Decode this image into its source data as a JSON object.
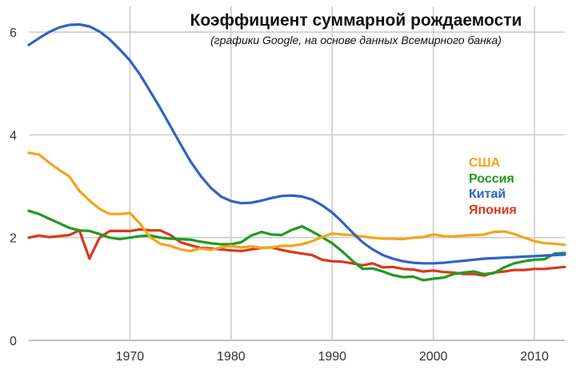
{
  "chart_data": {
    "type": "line",
    "title": "Коэффициент суммарной рождаемости",
    "subtitle": "(графики Google, на основе данных Всемирного банка)",
    "xlabel": "",
    "ylabel": "",
    "xlim": [
      1960,
      2013
    ],
    "ylim": [
      0,
      6.5
    ],
    "x_ticks": [
      1970,
      1980,
      1990,
      2000,
      2010
    ],
    "y_ticks": [
      0,
      2,
      4,
      6
    ],
    "grid": true,
    "legend_position": "right",
    "series": [
      {
        "name": "США",
        "color": "#f5a31a",
        "points": [
          [
            1960,
            3.65
          ],
          [
            1961,
            3.62
          ],
          [
            1962,
            3.46
          ],
          [
            1963,
            3.32
          ],
          [
            1964,
            3.19
          ],
          [
            1965,
            2.91
          ],
          [
            1966,
            2.72
          ],
          [
            1967,
            2.56
          ],
          [
            1968,
            2.46
          ],
          [
            1969,
            2.46
          ],
          [
            1970,
            2.48
          ],
          [
            1971,
            2.27
          ],
          [
            1972,
            2.01
          ],
          [
            1973,
            1.88
          ],
          [
            1974,
            1.84
          ],
          [
            1975,
            1.77
          ],
          [
            1976,
            1.74
          ],
          [
            1977,
            1.79
          ],
          [
            1978,
            1.76
          ],
          [
            1979,
            1.81
          ],
          [
            1980,
            1.84
          ],
          [
            1981,
            1.81
          ],
          [
            1982,
            1.83
          ],
          [
            1983,
            1.8
          ],
          [
            1984,
            1.81
          ],
          [
            1985,
            1.84
          ],
          [
            1986,
            1.84
          ],
          [
            1987,
            1.87
          ],
          [
            1988,
            1.93
          ],
          [
            1989,
            2.01
          ],
          [
            1990,
            2.08
          ],
          [
            1991,
            2.06
          ],
          [
            1992,
            2.05
          ],
          [
            1993,
            2.02
          ],
          [
            1994,
            2.0
          ],
          [
            1995,
            1.98
          ],
          [
            1996,
            1.98
          ],
          [
            1997,
            1.97
          ],
          [
            1998,
            2.0
          ],
          [
            1999,
            2.01
          ],
          [
            2000,
            2.06
          ],
          [
            2001,
            2.03
          ],
          [
            2002,
            2.02
          ],
          [
            2003,
            2.04
          ],
          [
            2004,
            2.05
          ],
          [
            2005,
            2.06
          ],
          [
            2006,
            2.11
          ],
          [
            2007,
            2.12
          ],
          [
            2008,
            2.07
          ],
          [
            2009,
            2.0
          ],
          [
            2010,
            1.93
          ],
          [
            2011,
            1.89
          ],
          [
            2012,
            1.88
          ],
          [
            2013,
            1.86
          ]
        ]
      },
      {
        "name": "Россия",
        "color": "#1f9a1f",
        "points": [
          [
            1960,
            2.52
          ],
          [
            1961,
            2.46
          ],
          [
            1962,
            2.37
          ],
          [
            1963,
            2.28
          ],
          [
            1964,
            2.19
          ],
          [
            1965,
            2.14
          ],
          [
            1966,
            2.13
          ],
          [
            1967,
            2.07
          ],
          [
            1968,
            2.0
          ],
          [
            1969,
            1.97
          ],
          [
            1970,
            2.0
          ],
          [
            1971,
            2.03
          ],
          [
            1972,
            2.04
          ],
          [
            1973,
            2.0
          ],
          [
            1974,
            1.98
          ],
          [
            1975,
            1.97
          ],
          [
            1976,
            1.96
          ],
          [
            1977,
            1.92
          ],
          [
            1978,
            1.89
          ],
          [
            1979,
            1.87
          ],
          [
            1980,
            1.87
          ],
          [
            1981,
            1.91
          ],
          [
            1982,
            2.04
          ],
          [
            1983,
            2.11
          ],
          [
            1984,
            2.06
          ],
          [
            1985,
            2.05
          ],
          [
            1986,
            2.15
          ],
          [
            1987,
            2.22
          ],
          [
            1988,
            2.12
          ],
          [
            1989,
            2.01
          ],
          [
            1990,
            1.89
          ],
          [
            1991,
            1.73
          ],
          [
            1992,
            1.55
          ],
          [
            1993,
            1.39
          ],
          [
            1994,
            1.4
          ],
          [
            1995,
            1.34
          ],
          [
            1996,
            1.27
          ],
          [
            1997,
            1.23
          ],
          [
            1998,
            1.24
          ],
          [
            1999,
            1.17
          ],
          [
            2000,
            1.2
          ],
          [
            2001,
            1.22
          ],
          [
            2002,
            1.29
          ],
          [
            2003,
            1.32
          ],
          [
            2004,
            1.34
          ],
          [
            2005,
            1.29
          ],
          [
            2006,
            1.31
          ],
          [
            2007,
            1.42
          ],
          [
            2008,
            1.5
          ],
          [
            2009,
            1.54
          ],
          [
            2010,
            1.57
          ],
          [
            2011,
            1.58
          ],
          [
            2012,
            1.69
          ],
          [
            2013,
            1.7
          ]
        ]
      },
      {
        "name": "Китай",
        "color": "#2e63c8",
        "points": [
          [
            1960,
            5.75
          ],
          [
            1961,
            5.88
          ],
          [
            1962,
            6.0
          ],
          [
            1963,
            6.09
          ],
          [
            1964,
            6.14
          ],
          [
            1965,
            6.15
          ],
          [
            1966,
            6.11
          ],
          [
            1967,
            6.01
          ],
          [
            1968,
            5.86
          ],
          [
            1969,
            5.66
          ],
          [
            1970,
            5.45
          ],
          [
            1971,
            5.17
          ],
          [
            1972,
            4.85
          ],
          [
            1973,
            4.52
          ],
          [
            1974,
            4.17
          ],
          [
            1975,
            3.82
          ],
          [
            1976,
            3.48
          ],
          [
            1977,
            3.2
          ],
          [
            1978,
            2.97
          ],
          [
            1979,
            2.8
          ],
          [
            1980,
            2.71
          ],
          [
            1981,
            2.67
          ],
          [
            1982,
            2.68
          ],
          [
            1983,
            2.72
          ],
          [
            1984,
            2.77
          ],
          [
            1985,
            2.81
          ],
          [
            1986,
            2.82
          ],
          [
            1987,
            2.8
          ],
          [
            1988,
            2.74
          ],
          [
            1989,
            2.63
          ],
          [
            1990,
            2.49
          ],
          [
            1991,
            2.3
          ],
          [
            1992,
            2.1
          ],
          [
            1993,
            1.91
          ],
          [
            1994,
            1.77
          ],
          [
            1995,
            1.66
          ],
          [
            1996,
            1.59
          ],
          [
            1997,
            1.54
          ],
          [
            1998,
            1.51
          ],
          [
            1999,
            1.5
          ],
          [
            2000,
            1.5
          ],
          [
            2001,
            1.51
          ],
          [
            2002,
            1.53
          ],
          [
            2003,
            1.55
          ],
          [
            2004,
            1.57
          ],
          [
            2005,
            1.59
          ],
          [
            2006,
            1.6
          ],
          [
            2007,
            1.61
          ],
          [
            2008,
            1.62
          ],
          [
            2009,
            1.63
          ],
          [
            2010,
            1.64
          ],
          [
            2011,
            1.65
          ],
          [
            2012,
            1.66
          ],
          [
            2013,
            1.67
          ]
        ]
      },
      {
        "name": "Япония",
        "color": "#d9381e",
        "points": [
          [
            1960,
            2.0
          ],
          [
            1961,
            2.04
          ],
          [
            1962,
            2.01
          ],
          [
            1963,
            2.03
          ],
          [
            1964,
            2.05
          ],
          [
            1965,
            2.14
          ],
          [
            1966,
            1.59
          ],
          [
            1967,
            2.0
          ],
          [
            1968,
            2.13
          ],
          [
            1969,
            2.13
          ],
          [
            1970,
            2.13
          ],
          [
            1971,
            2.16
          ],
          [
            1972,
            2.14
          ],
          [
            1973,
            2.14
          ],
          [
            1974,
            2.05
          ],
          [
            1975,
            1.91
          ],
          [
            1976,
            1.85
          ],
          [
            1977,
            1.8
          ],
          [
            1978,
            1.79
          ],
          [
            1979,
            1.77
          ],
          [
            1980,
            1.75
          ],
          [
            1981,
            1.74
          ],
          [
            1982,
            1.77
          ],
          [
            1983,
            1.8
          ],
          [
            1984,
            1.81
          ],
          [
            1985,
            1.76
          ],
          [
            1986,
            1.72
          ],
          [
            1987,
            1.69
          ],
          [
            1988,
            1.66
          ],
          [
            1989,
            1.57
          ],
          [
            1990,
            1.54
          ],
          [
            1991,
            1.53
          ],
          [
            1992,
            1.5
          ],
          [
            1993,
            1.46
          ],
          [
            1994,
            1.5
          ],
          [
            1995,
            1.42
          ],
          [
            1996,
            1.43
          ],
          [
            1997,
            1.39
          ],
          [
            1998,
            1.38
          ],
          [
            1999,
            1.34
          ],
          [
            2000,
            1.36
          ],
          [
            2001,
            1.33
          ],
          [
            2002,
            1.32
          ],
          [
            2003,
            1.29
          ],
          [
            2004,
            1.29
          ],
          [
            2005,
            1.26
          ],
          [
            2006,
            1.32
          ],
          [
            2007,
            1.34
          ],
          [
            2008,
            1.37
          ],
          [
            2009,
            1.37
          ],
          [
            2010,
            1.39
          ],
          [
            2011,
            1.39
          ],
          [
            2012,
            1.41
          ],
          [
            2013,
            1.43
          ]
        ]
      }
    ]
  }
}
